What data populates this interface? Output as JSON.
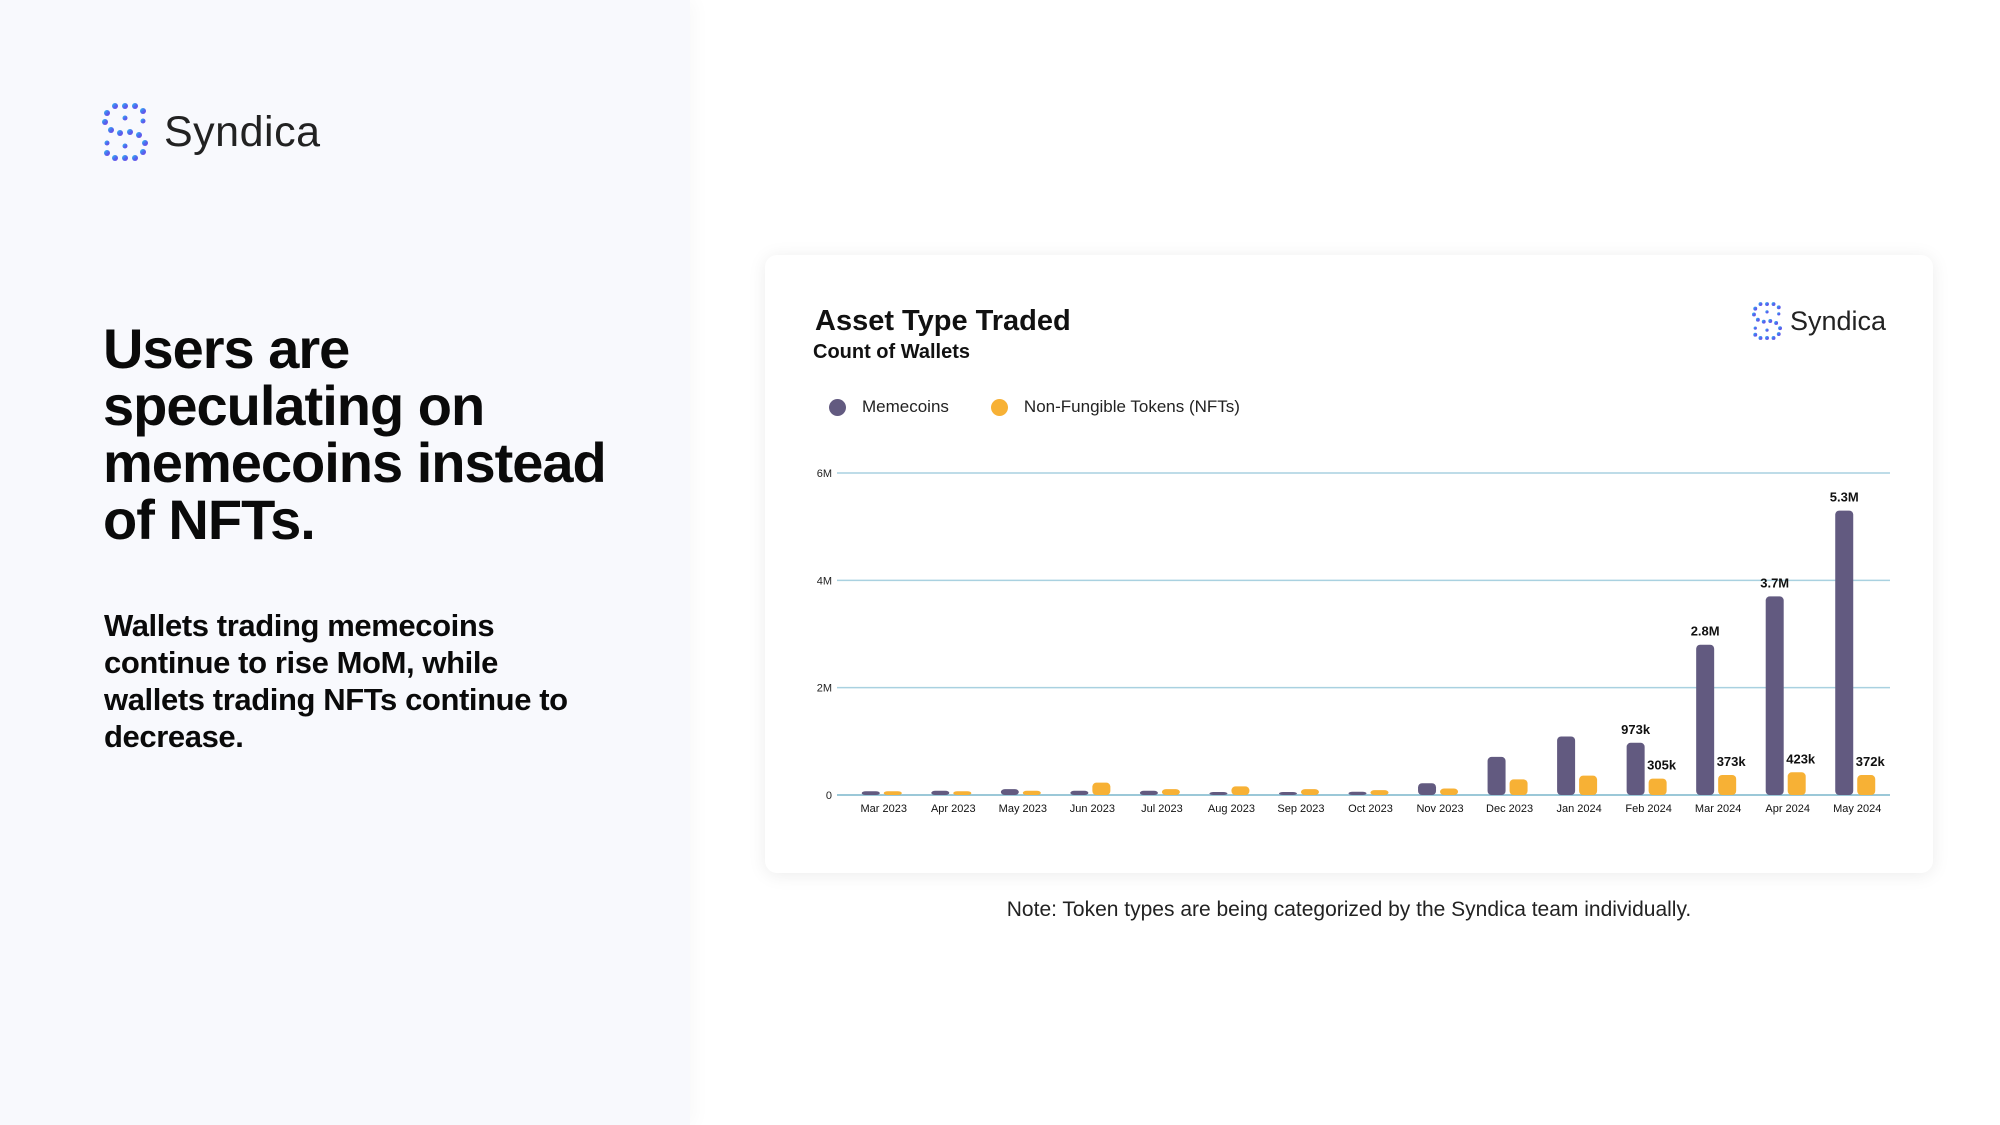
{
  "brand": {
    "name": "Syndica",
    "logo_icon": "syndica-logo-icon"
  },
  "headline": "Users are speculating on memecoins instead of NFTs.",
  "subtext": "Wallets trading memecoins continue to rise MoM, while wallets trading NFTs continue to decrease.",
  "note": "Note: Token types are being categorized by the Syndica team individually.",
  "colors": {
    "memecoins": "#625a80",
    "nfts": "#f7b135",
    "gridline": "#a9d1e0",
    "panel_bg": "#f8f9fd"
  },
  "chart_data": {
    "type": "bar",
    "title": "Asset Type Traded",
    "subtitle": "Count of Wallets",
    "xlabel": "",
    "ylabel": "",
    "ylim": [
      0,
      6000000
    ],
    "yticks": [
      {
        "value": 0,
        "label": "0"
      },
      {
        "value": 2000000,
        "label": "2M"
      },
      {
        "value": 4000000,
        "label": "4M"
      },
      {
        "value": 6000000,
        "label": "6M"
      }
    ],
    "grid": true,
    "legend_position": "top-left",
    "categories": [
      "Mar 2023",
      "Apr 2023",
      "May 2023",
      "Jun 2023",
      "Jul 2023",
      "Aug 2023",
      "Sep 2023",
      "Oct 2023",
      "Nov 2023",
      "Dec 2023",
      "Jan 2024",
      "Feb 2024",
      "Mar 2024",
      "Apr 2024",
      "May 2024"
    ],
    "series": [
      {
        "name": "Memecoins",
        "color": "#625a80",
        "values": [
          70000,
          80000,
          110000,
          80000,
          80000,
          50000,
          40000,
          60000,
          220000,
          710000,
          1090000,
          973000,
          2800000,
          3700000,
          5300000
        ],
        "data_labels": [
          "",
          "",
          "",
          "",
          "",
          "",
          "",
          "",
          "",
          "",
          "",
          "973k",
          "2.8M",
          "3.7M",
          "5.3M"
        ]
      },
      {
        "name": "Non-Fungible Tokens (NFTs)",
        "color": "#f7b135",
        "values": [
          70000,
          70000,
          80000,
          230000,
          110000,
          160000,
          110000,
          90000,
          120000,
          290000,
          360000,
          305000,
          373000,
          423000,
          372000
        ],
        "data_labels": [
          "",
          "",
          "",
          "",
          "",
          "",
          "",
          "",
          "",
          "",
          "",
          "305k",
          "373k",
          "423k",
          "372k"
        ]
      }
    ]
  }
}
